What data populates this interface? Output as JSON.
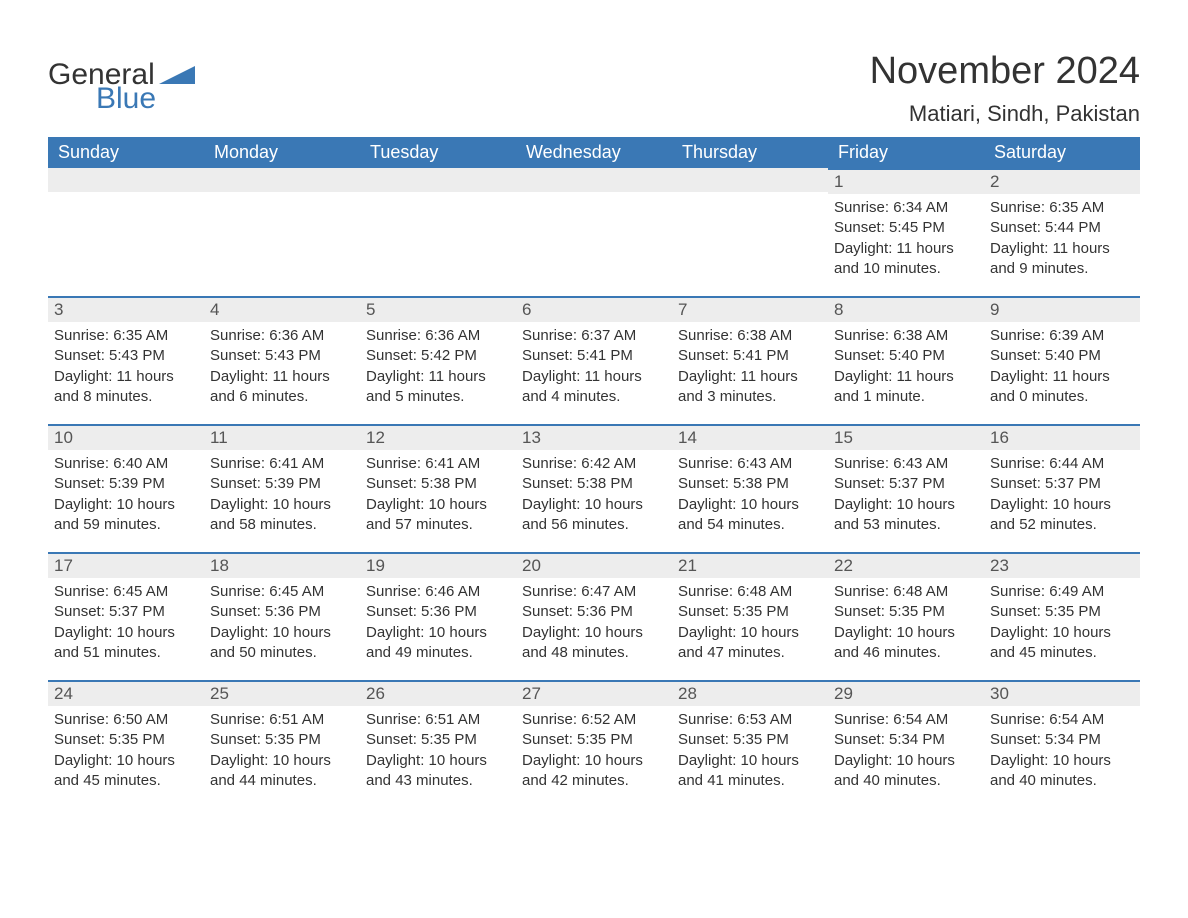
{
  "logo": {
    "text_general": "General",
    "text_blue": "Blue"
  },
  "title": "November 2024",
  "location": "Matiari, Sindh, Pakistan",
  "colors": {
    "header_bg": "#3a78b5",
    "daynum_bg": "#ededed",
    "page_bg": "#ffffff",
    "text": "#333333",
    "border": "#3a78b5"
  },
  "day_headers": [
    "Sunday",
    "Monday",
    "Tuesday",
    "Wednesday",
    "Thursday",
    "Friday",
    "Saturday"
  ],
  "weeks": [
    [
      null,
      null,
      null,
      null,
      null,
      {
        "day": "1",
        "sunrise": "Sunrise: 6:34 AM",
        "sunset": "Sunset: 5:45 PM",
        "daylight": "Daylight: 11 hours and 10 minutes."
      },
      {
        "day": "2",
        "sunrise": "Sunrise: 6:35 AM",
        "sunset": "Sunset: 5:44 PM",
        "daylight": "Daylight: 11 hours and 9 minutes."
      }
    ],
    [
      {
        "day": "3",
        "sunrise": "Sunrise: 6:35 AM",
        "sunset": "Sunset: 5:43 PM",
        "daylight": "Daylight: 11 hours and 8 minutes."
      },
      {
        "day": "4",
        "sunrise": "Sunrise: 6:36 AM",
        "sunset": "Sunset: 5:43 PM",
        "daylight": "Daylight: 11 hours and 6 minutes."
      },
      {
        "day": "5",
        "sunrise": "Sunrise: 6:36 AM",
        "sunset": "Sunset: 5:42 PM",
        "daylight": "Daylight: 11 hours and 5 minutes."
      },
      {
        "day": "6",
        "sunrise": "Sunrise: 6:37 AM",
        "sunset": "Sunset: 5:41 PM",
        "daylight": "Daylight: 11 hours and 4 minutes."
      },
      {
        "day": "7",
        "sunrise": "Sunrise: 6:38 AM",
        "sunset": "Sunset: 5:41 PM",
        "daylight": "Daylight: 11 hours and 3 minutes."
      },
      {
        "day": "8",
        "sunrise": "Sunrise: 6:38 AM",
        "sunset": "Sunset: 5:40 PM",
        "daylight": "Daylight: 11 hours and 1 minute."
      },
      {
        "day": "9",
        "sunrise": "Sunrise: 6:39 AM",
        "sunset": "Sunset: 5:40 PM",
        "daylight": "Daylight: 11 hours and 0 minutes."
      }
    ],
    [
      {
        "day": "10",
        "sunrise": "Sunrise: 6:40 AM",
        "sunset": "Sunset: 5:39 PM",
        "daylight": "Daylight: 10 hours and 59 minutes."
      },
      {
        "day": "11",
        "sunrise": "Sunrise: 6:41 AM",
        "sunset": "Sunset: 5:39 PM",
        "daylight": "Daylight: 10 hours and 58 minutes."
      },
      {
        "day": "12",
        "sunrise": "Sunrise: 6:41 AM",
        "sunset": "Sunset: 5:38 PM",
        "daylight": "Daylight: 10 hours and 57 minutes."
      },
      {
        "day": "13",
        "sunrise": "Sunrise: 6:42 AM",
        "sunset": "Sunset: 5:38 PM",
        "daylight": "Daylight: 10 hours and 56 minutes."
      },
      {
        "day": "14",
        "sunrise": "Sunrise: 6:43 AM",
        "sunset": "Sunset: 5:38 PM",
        "daylight": "Daylight: 10 hours and 54 minutes."
      },
      {
        "day": "15",
        "sunrise": "Sunrise: 6:43 AM",
        "sunset": "Sunset: 5:37 PM",
        "daylight": "Daylight: 10 hours and 53 minutes."
      },
      {
        "day": "16",
        "sunrise": "Sunrise: 6:44 AM",
        "sunset": "Sunset: 5:37 PM",
        "daylight": "Daylight: 10 hours and 52 minutes."
      }
    ],
    [
      {
        "day": "17",
        "sunrise": "Sunrise: 6:45 AM",
        "sunset": "Sunset: 5:37 PM",
        "daylight": "Daylight: 10 hours and 51 minutes."
      },
      {
        "day": "18",
        "sunrise": "Sunrise: 6:45 AM",
        "sunset": "Sunset: 5:36 PM",
        "daylight": "Daylight: 10 hours and 50 minutes."
      },
      {
        "day": "19",
        "sunrise": "Sunrise: 6:46 AM",
        "sunset": "Sunset: 5:36 PM",
        "daylight": "Daylight: 10 hours and 49 minutes."
      },
      {
        "day": "20",
        "sunrise": "Sunrise: 6:47 AM",
        "sunset": "Sunset: 5:36 PM",
        "daylight": "Daylight: 10 hours and 48 minutes."
      },
      {
        "day": "21",
        "sunrise": "Sunrise: 6:48 AM",
        "sunset": "Sunset: 5:35 PM",
        "daylight": "Daylight: 10 hours and 47 minutes."
      },
      {
        "day": "22",
        "sunrise": "Sunrise: 6:48 AM",
        "sunset": "Sunset: 5:35 PM",
        "daylight": "Daylight: 10 hours and 46 minutes."
      },
      {
        "day": "23",
        "sunrise": "Sunrise: 6:49 AM",
        "sunset": "Sunset: 5:35 PM",
        "daylight": "Daylight: 10 hours and 45 minutes."
      }
    ],
    [
      {
        "day": "24",
        "sunrise": "Sunrise: 6:50 AM",
        "sunset": "Sunset: 5:35 PM",
        "daylight": "Daylight: 10 hours and 45 minutes."
      },
      {
        "day": "25",
        "sunrise": "Sunrise: 6:51 AM",
        "sunset": "Sunset: 5:35 PM",
        "daylight": "Daylight: 10 hours and 44 minutes."
      },
      {
        "day": "26",
        "sunrise": "Sunrise: 6:51 AM",
        "sunset": "Sunset: 5:35 PM",
        "daylight": "Daylight: 10 hours and 43 minutes."
      },
      {
        "day": "27",
        "sunrise": "Sunrise: 6:52 AM",
        "sunset": "Sunset: 5:35 PM",
        "daylight": "Daylight: 10 hours and 42 minutes."
      },
      {
        "day": "28",
        "sunrise": "Sunrise: 6:53 AM",
        "sunset": "Sunset: 5:35 PM",
        "daylight": "Daylight: 10 hours and 41 minutes."
      },
      {
        "day": "29",
        "sunrise": "Sunrise: 6:54 AM",
        "sunset": "Sunset: 5:34 PM",
        "daylight": "Daylight: 10 hours and 40 minutes."
      },
      {
        "day": "30",
        "sunrise": "Sunrise: 6:54 AM",
        "sunset": "Sunset: 5:34 PM",
        "daylight": "Daylight: 10 hours and 40 minutes."
      }
    ]
  ]
}
